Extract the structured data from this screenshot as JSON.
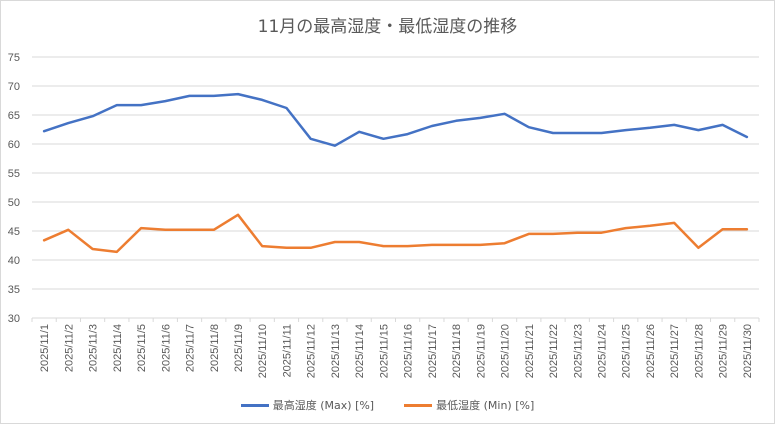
{
  "chart_data": {
    "type": "line",
    "title": "11月の最高湿度・最低湿度の推移",
    "xlabel": "",
    "ylabel": "",
    "ylim": [
      30,
      75
    ],
    "yticks": [
      30,
      35,
      40,
      45,
      50,
      55,
      60,
      65,
      70,
      75
    ],
    "grid": true,
    "legend_position": "bottom",
    "categories": [
      "2025/11/1",
      "2025/11/2",
      "2025/11/3",
      "2025/11/4",
      "2025/11/5",
      "2025/11/6",
      "2025/11/7",
      "2025/11/8",
      "2025/11/9",
      "2025/11/10",
      "2025/11/11",
      "2025/11/12",
      "2025/11/13",
      "2025/11/14",
      "2025/11/15",
      "2025/11/16",
      "2025/11/17",
      "2025/11/18",
      "2025/11/19",
      "2025/11/20",
      "2025/11/21",
      "2025/11/22",
      "2025/11/23",
      "2025/11/24",
      "2025/11/25",
      "2025/11/26",
      "2025/11/27",
      "2025/11/28",
      "2025/11/29",
      "2025/11/30"
    ],
    "series": [
      {
        "name": "最高湿度 (Max) [%]",
        "color": "#4472c4",
        "values": [
          62.2,
          63.6,
          64.8,
          66.7,
          66.7,
          67.4,
          68.3,
          68.3,
          68.6,
          67.6,
          66.2,
          60.9,
          59.7,
          62.1,
          60.9,
          61.7,
          63.1,
          64.0,
          64.5,
          65.2,
          62.9,
          61.9,
          61.9,
          61.9,
          62.4,
          62.8,
          63.3,
          62.4,
          63.3,
          61.2
        ]
      },
      {
        "name": "最低湿度 (Min) [%]",
        "color": "#ed7d31",
        "values": [
          43.4,
          45.2,
          41.9,
          41.4,
          45.5,
          45.2,
          45.2,
          45.2,
          47.8,
          42.4,
          42.1,
          42.1,
          43.1,
          43.1,
          42.4,
          42.4,
          42.6,
          42.6,
          42.6,
          42.9,
          44.5,
          44.5,
          44.7,
          44.7,
          45.5,
          45.9,
          46.4,
          42.1,
          45.3,
          45.3
        ]
      }
    ]
  }
}
